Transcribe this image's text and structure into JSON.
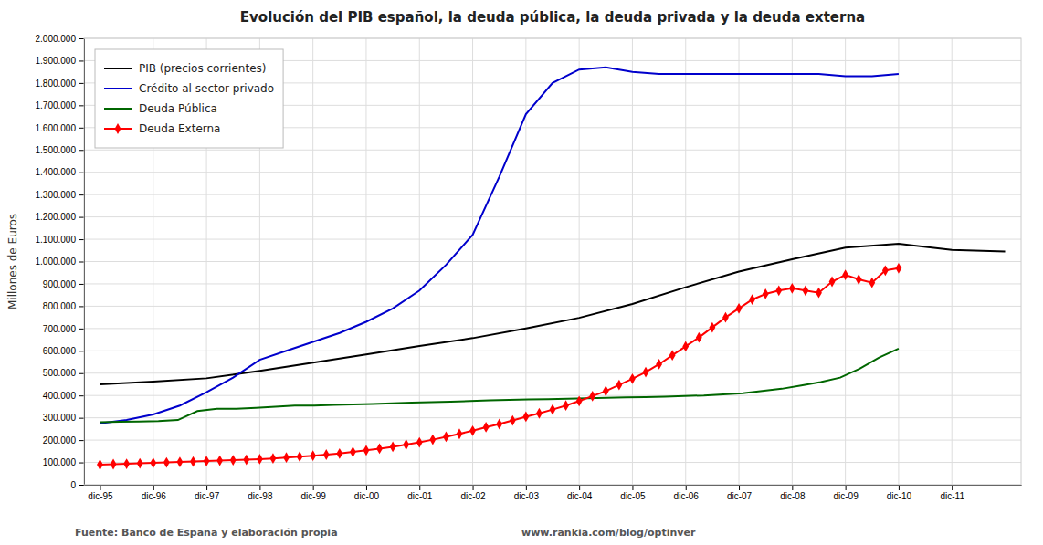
{
  "chart_data": {
    "type": "line",
    "title": "Evolución del PIB español, la deuda pública, la deuda privada y la deuda externa",
    "ylabel": "Millones de Euros",
    "annotations": [
      "Fuente: Banco de España y elaboración propia",
      "www.rankia.com/blog/optinver"
    ],
    "xlim": [
      -0.3,
      17.3
    ],
    "xticks": [
      {
        "value": 0,
        "label": "dic-95"
      },
      {
        "value": 1,
        "label": "dic-96"
      },
      {
        "value": 2,
        "label": "dic-97"
      },
      {
        "value": 3,
        "label": "dic-98"
      },
      {
        "value": 4,
        "label": "dic-99"
      },
      {
        "value": 5,
        "label": "dic-00"
      },
      {
        "value": 6,
        "label": "dic-01"
      },
      {
        "value": 7,
        "label": "dic-02"
      },
      {
        "value": 8,
        "label": "dic-03"
      },
      {
        "value": 9,
        "label": "dic-04"
      },
      {
        "value": 10,
        "label": "dic-05"
      },
      {
        "value": 11,
        "label": "dic-06"
      },
      {
        "value": 12,
        "label": "dic-07"
      },
      {
        "value": 13,
        "label": "dic-08"
      },
      {
        "value": 14,
        "label": "dic-09"
      },
      {
        "value": 15,
        "label": "dic-10"
      },
      {
        "value": 16,
        "label": "dic-11"
      }
    ],
    "ylim": [
      0,
      2000000
    ],
    "yticks": [
      0,
      {
        "value": 100000,
        "label": "100.000"
      },
      {
        "value": 200000,
        "label": "200.000"
      },
      {
        "value": 300000,
        "label": "300.000"
      },
      {
        "value": 400000,
        "label": "400.000"
      },
      {
        "value": 500000,
        "label": "500.000"
      },
      {
        "value": 600000,
        "label": "600.000"
      },
      {
        "value": 700000,
        "label": "700.000"
      },
      {
        "value": 800000,
        "label": "800.000"
      },
      {
        "value": 900000,
        "label": "900.000"
      },
      {
        "value": 1000000,
        "label": "1.000.000"
      },
      {
        "value": 1100000,
        "label": "1.100.000"
      },
      {
        "value": 1200000,
        "label": "1.200.000"
      },
      {
        "value": 1300000,
        "label": "1.300.000"
      },
      {
        "value": 1400000,
        "label": "1.400.000"
      },
      {
        "value": 1500000,
        "label": "1.500.000"
      },
      {
        "value": 1600000,
        "label": "1.600.000"
      },
      {
        "value": 1700000,
        "label": "1.700.000"
      },
      {
        "value": 1800000,
        "label": "1.800.000"
      },
      {
        "value": 1900000,
        "label": "1.900.000"
      },
      {
        "value": 2000000,
        "label": "2.000.000"
      }
    ],
    "grid": true,
    "legend": "upper left",
    "series": [
      {
        "name": "PIB (precios corrientes)",
        "color": "#000000",
        "x": [
          0,
          1,
          2,
          3,
          4,
          5,
          6,
          7,
          8,
          9,
          10,
          11,
          12,
          13,
          14,
          15,
          16,
          17
        ],
        "values": [
          450000,
          462000,
          477000,
          510000,
          547000,
          584000,
          622000,
          657000,
          700000,
          748000,
          810000,
          885000,
          955000,
          1010000,
          1062000,
          1080000,
          1052000,
          1045000
        ]
      },
      {
        "name": "Crédito al sector privado",
        "color": "#0000CC",
        "x": [
          0,
          0.5,
          1,
          1.5,
          2,
          2.5,
          3,
          3.5,
          4,
          4.5,
          5,
          5.5,
          6,
          6.5,
          7,
          7.5,
          8,
          8.5,
          9,
          9.5,
          10,
          10.5,
          11,
          11.5,
          12,
          12.5,
          13,
          13.5,
          14,
          14.5,
          15
        ],
        "values": [
          275000,
          290000,
          315000,
          355000,
          415000,
          480000,
          560000,
          600000,
          640000,
          680000,
          730000,
          790000,
          870000,
          985000,
          1120000,
          1380000,
          1660000,
          1800000,
          1860000,
          1870000,
          1850000,
          1840000,
          1840000,
          1840000,
          1840000,
          1840000,
          1840000,
          1840000,
          1830000,
          1830000,
          1840000
        ]
      },
      {
        "name": "Deuda Pública",
        "color": "#006600",
        "x": [
          0,
          0.365854,
          0.731707,
          1.097561,
          1.463415,
          1.829268,
          2.195122,
          2.560976,
          2.926829,
          3.292683,
          3.658537,
          4.02439,
          4.390244,
          4.756098,
          5.121951,
          5.487805,
          5.853659,
          6.219512,
          6.585366,
          6.95122,
          7.317073,
          7.682927,
          8.04878,
          8.414634,
          8.780488,
          9.146341,
          9.512195,
          9.878049,
          10.243902,
          10.609756,
          10.97561,
          11.341463,
          11.707317,
          12.073171,
          12.439024,
          12.804878,
          13.170732,
          13.536585,
          13.902439,
          14.268293,
          14.634146,
          15
        ],
        "values": [
          280000,
          282000,
          283000,
          285000,
          290000,
          330000,
          340000,
          340000,
          345000,
          350000,
          355000,
          355000,
          358000,
          360000,
          362000,
          365000,
          368000,
          370000,
          372000,
          375000,
          378000,
          380000,
          382000,
          383000,
          385000,
          388000,
          390000,
          392000,
          393000,
          395000,
          398000,
          400000,
          405000,
          410000,
          420000,
          430000,
          445000,
          460000,
          480000,
          520000,
          570000,
          610000
        ]
      },
      {
        "name": "Deuda Externa",
        "color": "#FF0000",
        "marker": "diamond",
        "x": [
          0,
          0.25,
          0.5,
          0.75,
          1,
          1.25,
          1.5,
          1.75,
          2,
          2.25,
          2.5,
          2.75,
          3,
          3.25,
          3.5,
          3.75,
          4,
          4.25,
          4.5,
          4.75,
          5,
          5.25,
          5.5,
          5.75,
          6,
          6.25,
          6.5,
          6.75,
          7,
          7.25,
          7.5,
          7.75,
          8,
          8.25,
          8.5,
          8.75,
          9,
          9.25,
          9.5,
          9.75,
          10,
          10.25,
          10.5,
          10.75,
          11,
          11.25,
          11.5,
          11.75,
          12,
          12.25,
          12.5,
          12.75,
          13,
          13.25,
          13.5,
          13.75,
          14,
          14.25,
          14.5,
          14.75,
          15
        ],
        "values": [
          90000,
          92000,
          94000,
          96000,
          98000,
          100000,
          102000,
          104000,
          106000,
          108000,
          110000,
          112000,
          115000,
          118000,
          122000,
          126000,
          130000,
          135000,
          140000,
          147000,
          154000,
          162000,
          170000,
          180000,
          190000,
          202000,
          215000,
          228000,
          242000,
          258000,
          272000,
          288000,
          305000,
          320000,
          337000,
          355000,
          375000,
          397000,
          420000,
          447000,
          475000,
          505000,
          540000,
          580000,
          620000,
          660000,
          705000,
          750000,
          790000,
          830000,
          855000,
          870000,
          880000,
          870000,
          860000,
          910000,
          940000,
          920000,
          905000,
          960000,
          970000
        ]
      }
    ]
  }
}
